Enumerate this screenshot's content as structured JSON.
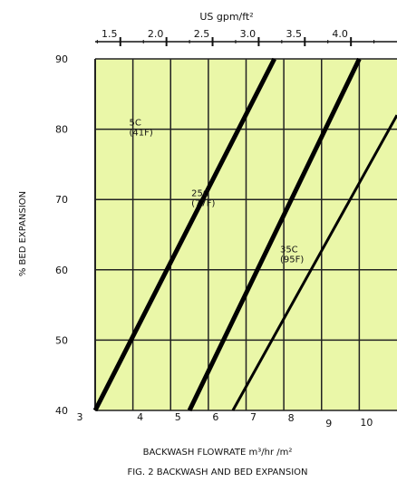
{
  "chart_data": {
    "type": "line",
    "title": "FIG. 2 BACKWASH AND BED EXPANSION",
    "xlabel": "BACKWASH FLOWRATE m³/hr /m²",
    "ylabel": "% BED EXPANSION",
    "top_axis_label": "US gpm/ft²",
    "xlim": [
      3,
      11
    ],
    "ylim": [
      40,
      90
    ],
    "x_ticks": [
      3,
      4,
      5,
      6,
      7,
      8,
      9,
      10
    ],
    "y_ticks": [
      40,
      50,
      60,
      70,
      80,
      90
    ],
    "top_ticks": [
      1.5,
      2.0,
      2.5,
      3.0,
      3.5,
      4.0
    ],
    "top_tick_labels": [
      "1.5",
      "2.0",
      "2.5",
      "3.0",
      "3.5",
      "4.0"
    ],
    "grid": true,
    "background_color": "#eaf7a8",
    "line_color": "#000000",
    "series": [
      {
        "name": "5 C (41 F)",
        "label_lines": [
          "5C",
          "(41F)"
        ],
        "label_pos": [
          3.9,
          80.5
        ],
        "x": [
          3.0,
          7.75
        ],
        "y": [
          40,
          90
        ],
        "width": 5
      },
      {
        "name": "25 C (77 F)",
        "label_lines": [
          "25C",
          "(77F)"
        ],
        "label_pos": [
          5.55,
          70.5
        ],
        "x": [
          5.5,
          10.0
        ],
        "y": [
          40,
          90
        ],
        "width": 5
      },
      {
        "name": "35 C (95 F)",
        "label_lines": [
          "35C",
          "(95F)"
        ],
        "label_pos": [
          7.9,
          62.5
        ],
        "x": [
          6.65,
          11.0
        ],
        "y": [
          40,
          82
        ],
        "width": 3
      }
    ]
  }
}
